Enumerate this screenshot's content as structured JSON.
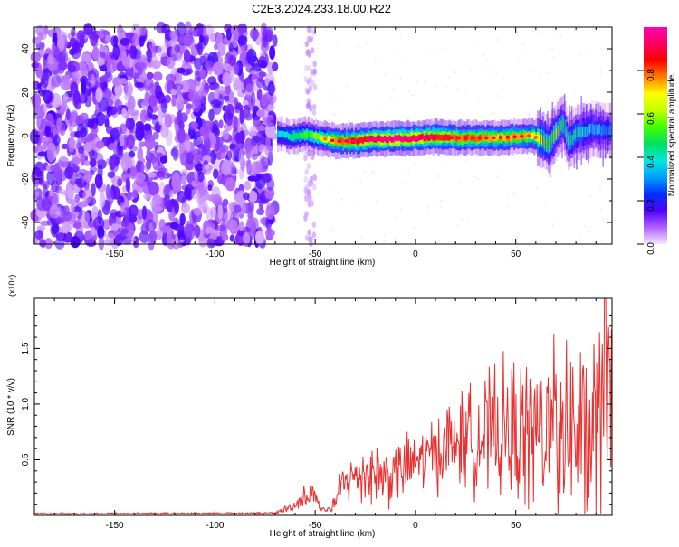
{
  "title": "C2E3.2024.233.18.00.R22",
  "chart_data": [
    {
      "type": "heatmap",
      "xlabel": "Height of straight line (km)",
      "ylabel": "Frequency (Hz)",
      "xlim": [
        -190,
        98
      ],
      "ylim": [
        -50,
        50
      ],
      "xticks": [
        -150,
        -100,
        -50,
        0,
        50
      ],
      "xtick_labels": [
        "-150",
        "-100",
        "-50",
        "0",
        "50"
      ],
      "yticks": [
        -40,
        -20,
        0,
        20,
        40
      ],
      "ytick_labels": [
        "-40",
        "-20",
        "0",
        "20",
        "40"
      ],
      "colorbar": {
        "label": "Normalized spectral amplitude",
        "range": [
          0,
          1
        ],
        "ticks": [
          0.0,
          0.2,
          0.4,
          0.6,
          0.8
        ],
        "tick_labels": [
          "0.0",
          "0.2",
          "0.4",
          "0.6",
          "0.8"
        ],
        "colors": [
          "#f4e8ff",
          "#b060ff",
          "#5000ff",
          "#0030ff",
          "#00a0ff",
          "#00e8e0",
          "#00e060",
          "#40ff00",
          "#c0ff00",
          "#ffff00",
          "#ff8000",
          "#ff0000",
          "#ff0060",
          "#ff00b0"
        ]
      },
      "noise_region": [
        -190,
        -70
      ],
      "noise_band": [
        -55,
        -50
      ],
      "ridge": [
        {
          "x": -69,
          "y": 1.0,
          "a": 0.35
        },
        {
          "x": -62,
          "y": -0.5,
          "a": 0.45
        },
        {
          "x": -55,
          "y": 0.5,
          "a": 0.5
        },
        {
          "x": -48,
          "y": -1.0,
          "a": 0.6
        },
        {
          "x": -40,
          "y": -2.5,
          "a": 0.75
        },
        {
          "x": -30,
          "y": -2.5,
          "a": 0.85
        },
        {
          "x": -20,
          "y": -1.5,
          "a": 0.9
        },
        {
          "x": -10,
          "y": -1.5,
          "a": 0.95
        },
        {
          "x": 0,
          "y": -1.0,
          "a": 0.9
        },
        {
          "x": 10,
          "y": -0.5,
          "a": 0.85
        },
        {
          "x": 20,
          "y": -1.0,
          "a": 0.8
        },
        {
          "x": 30,
          "y": -1.0,
          "a": 0.8
        },
        {
          "x": 40,
          "y": -1.0,
          "a": 0.75
        },
        {
          "x": 50,
          "y": -0.5,
          "a": 0.75
        },
        {
          "x": 58,
          "y": 0.0,
          "a": 0.7
        },
        {
          "x": 63,
          "y": -2.0,
          "a": 0.6
        },
        {
          "x": 66,
          "y": -4.0,
          "a": 0.5
        },
        {
          "x": 70,
          "y": 2.0,
          "a": 0.55
        },
        {
          "x": 73,
          "y": 6.0,
          "a": 0.45
        },
        {
          "x": 76,
          "y": -3.0,
          "a": 0.45
        },
        {
          "x": 80,
          "y": 1.0,
          "a": 0.4
        },
        {
          "x": 88,
          "y": 3.0,
          "a": 0.35
        },
        {
          "x": 97,
          "y": 2.0,
          "a": 0.3
        }
      ]
    },
    {
      "type": "line",
      "xlabel": "Height of straight line (km)",
      "ylabel": "SNR (10 * v/v)",
      "scale_label": "(x10⁴)",
      "xlim": [
        -190,
        98
      ],
      "ylim": [
        0,
        1.95
      ],
      "xticks": [
        -150,
        -100,
        -50,
        0,
        50
      ],
      "xtick_labels": [
        "-150",
        "-100",
        "-50",
        "0",
        "50"
      ],
      "yticks": [
        0.5,
        1.0,
        1.5
      ],
      "ytick_labels": [
        "0.5",
        "1.0",
        "1.5"
      ],
      "series": [
        {
          "color": "#e83030",
          "x": [
            -190,
            -70,
            -60,
            -55,
            -50,
            -46,
            -42,
            -38,
            -35,
            -30,
            -25,
            -20,
            -15,
            -10,
            -5,
            0,
            5,
            10,
            15,
            20,
            25,
            30,
            35,
            40,
            45,
            50,
            55,
            60,
            65,
            70,
            75,
            80,
            85,
            90,
            95
          ],
          "y": [
            0.015,
            0.02,
            0.09,
            0.18,
            0.2,
            0.06,
            0.05,
            0.2,
            0.32,
            0.34,
            0.4,
            0.38,
            0.36,
            0.38,
            0.42,
            0.48,
            0.53,
            0.57,
            0.62,
            0.66,
            0.68,
            0.7,
            0.72,
            0.73,
            0.74,
            0.74,
            0.75,
            0.74,
            0.76,
            0.72,
            0.74,
            0.72,
            0.7,
            0.72,
            0.78
          ],
          "spread": [
            0.008,
            0.01,
            0.06,
            0.1,
            0.12,
            0.05,
            0.05,
            0.18,
            0.22,
            0.25,
            0.3,
            0.32,
            0.3,
            0.3,
            0.3,
            0.3,
            0.32,
            0.35,
            0.4,
            0.42,
            0.48,
            0.5,
            0.55,
            0.6,
            0.65,
            0.7,
            0.72,
            0.75,
            0.8,
            0.85,
            0.9,
            0.9,
            0.95,
            1.0,
            1.05
          ],
          "peak": 1.95
        }
      ]
    }
  ]
}
